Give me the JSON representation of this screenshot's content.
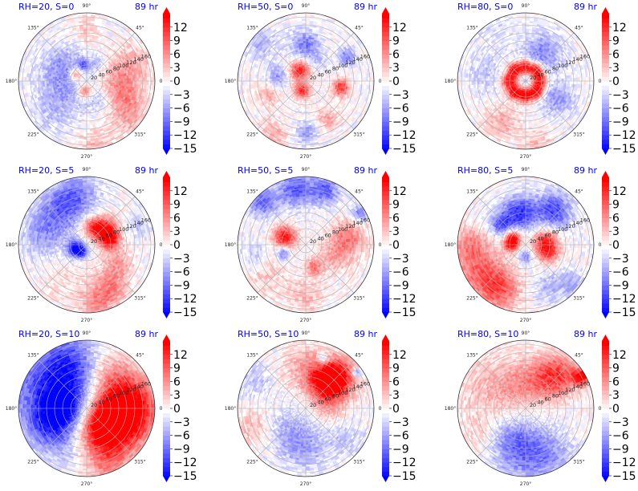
{
  "figure": {
    "rows": 3,
    "cols": 3,
    "time_label": "89 hr",
    "title_color": "#0000ff"
  },
  "chart_data": {
    "type": "heatmap",
    "projection": "polar",
    "title": "",
    "theta_tick_labels": [
      "0°",
      "45°",
      "90°",
      "135°",
      "180°",
      "225°",
      "270°",
      "315°"
    ],
    "r_tick_labels": [
      "20",
      "40",
      "60",
      "80",
      "100",
      "120",
      "140",
      "160"
    ],
    "r_range": [
      0,
      170
    ],
    "colorbar": {
      "cmap": "bwr",
      "range": [
        -15,
        15
      ],
      "extend": "both",
      "ticks": [
        "12",
        "9",
        "6",
        "3",
        "0",
        "−3",
        "−6",
        "−9",
        "−12",
        "−15"
      ],
      "tick_values": [
        12,
        9,
        6,
        3,
        0,
        -3,
        -6,
        -9,
        -12,
        -15
      ]
    },
    "panels": [
      {
        "label": "RH=20, S=0",
        "time": "89 hr",
        "RH": 20,
        "S": 0,
        "pattern": "weak mixed field; blue band to west/northwest, red arcs east and southeast, strong red spot near center-west and south of center",
        "blobs": [
          [
            150,
            70,
            -5,
            40
          ],
          [
            200,
            50,
            -3,
            45
          ],
          [
            340,
            100,
            6,
            30
          ],
          [
            320,
            140,
            5,
            30
          ],
          [
            20,
            120,
            5,
            35
          ],
          [
            150,
            30,
            10,
            12
          ],
          [
            260,
            25,
            10,
            12
          ],
          [
            100,
            40,
            -8,
            10
          ],
          [
            60,
            50,
            -4,
            12
          ],
          [
            220,
            110,
            -3,
            40
          ],
          [
            280,
            160,
            4,
            30
          ],
          [
            90,
            130,
            3,
            25
          ],
          [
            0,
            70,
            3,
            30
          ],
          [
            300,
            60,
            -3,
            20
          ]
        ]
      },
      {
        "label": "RH=50, S=0",
        "time": "89 hr",
        "RH": 50,
        "S": 0,
        "pattern": "strong red spiral near center, blue band surrounding, red patches to east",
        "blobs": [
          [
            120,
            30,
            14,
            18
          ],
          [
            250,
            25,
            13,
            14
          ],
          [
            350,
            90,
            12,
            15
          ],
          [
            90,
            90,
            -8,
            25
          ],
          [
            170,
            70,
            -6,
            20
          ],
          [
            30,
            120,
            -8,
            15
          ],
          [
            270,
            130,
            -6,
            20
          ],
          [
            200,
            100,
            5,
            20
          ],
          [
            300,
            110,
            5,
            20
          ],
          [
            240,
            155,
            4,
            30
          ],
          [
            140,
            150,
            -4,
            30
          ],
          [
            60,
            60,
            -3,
            15
          ]
        ]
      },
      {
        "label": "RH=80, S=0",
        "time": "89 hr",
        "RH": 80,
        "S": 0,
        "pattern": "intense red ring around eye with small blue core, surrounding weak blue band, weak red arc south-west",
        "blobs": [
          [
            0,
            0,
            -6,
            8
          ],
          [
            90,
            35,
            15,
            14
          ],
          [
            0,
            35,
            15,
            14
          ],
          [
            180,
            40,
            15,
            14
          ],
          [
            270,
            35,
            15,
            14
          ],
          [
            45,
            40,
            14,
            12
          ],
          [
            135,
            40,
            14,
            12
          ],
          [
            225,
            40,
            14,
            12
          ],
          [
            315,
            40,
            14,
            12
          ],
          [
            60,
            80,
            -7,
            35
          ],
          [
            330,
            90,
            -6,
            30
          ],
          [
            170,
            100,
            -3,
            35
          ],
          [
            240,
            120,
            5,
            30
          ],
          [
            280,
            160,
            4,
            25
          ],
          [
            120,
            150,
            -2,
            30
          ]
        ]
      },
      {
        "label": "RH=20, S=5",
        "time": "89 hr",
        "RH": 20,
        "S": 5,
        "pattern": "red arc north-east of center spiraling south, strong blue crescent west/south-west of center, blue north-west",
        "blobs": [
          [
            40,
            60,
            13,
            22
          ],
          [
            10,
            60,
            12,
            18
          ],
          [
            70,
            45,
            9,
            18
          ],
          [
            200,
            30,
            -14,
            15
          ],
          [
            230,
            20,
            -10,
            12
          ],
          [
            130,
            110,
            -8,
            40
          ],
          [
            100,
            130,
            -7,
            35
          ],
          [
            170,
            110,
            -5,
            35
          ],
          [
            300,
            120,
            7,
            30
          ],
          [
            280,
            150,
            6,
            30
          ],
          [
            330,
            90,
            5,
            25
          ],
          [
            20,
            140,
            -3,
            20
          ],
          [
            240,
            110,
            2,
            40
          ]
        ]
      },
      {
        "label": "RH=50, S=5",
        "time": "89 hr",
        "RH": 50,
        "S": 5,
        "pattern": "strong red patch west of center, blue band to north, blue streak south-west, red east",
        "blobs": [
          [
            160,
            55,
            14,
            20
          ],
          [
            100,
            140,
            -10,
            30
          ],
          [
            70,
            145,
            -9,
            25
          ],
          [
            135,
            150,
            -9,
            25
          ],
          [
            200,
            60,
            -9,
            12
          ],
          [
            10,
            110,
            7,
            30
          ],
          [
            340,
            80,
            5,
            30
          ],
          [
            290,
            60,
            8,
            15
          ],
          [
            270,
            130,
            4,
            30
          ],
          [
            220,
            120,
            3,
            35
          ],
          [
            190,
            130,
            -3,
            25
          ],
          [
            30,
            155,
            -8,
            15
          ]
        ]
      },
      {
        "label": "RH=80, S=5",
        "time": "89 hr",
        "RH": 80,
        "S": 5,
        "pattern": "red core with blue ring to north/west, strong blue north band, broad red sector south-west",
        "blobs": [
          [
            150,
            35,
            14,
            14
          ],
          [
            180,
            35,
            13,
            12
          ],
          [
            10,
            50,
            11,
            22
          ],
          [
            340,
            60,
            9,
            20
          ],
          [
            100,
            80,
            -12,
            30
          ],
          [
            50,
            110,
            -11,
            30
          ],
          [
            140,
            80,
            -9,
            20
          ],
          [
            270,
            30,
            -8,
            12
          ],
          [
            210,
            130,
            8,
            45
          ],
          [
            240,
            130,
            9,
            35
          ],
          [
            180,
            140,
            6,
            30
          ],
          [
            300,
            120,
            -4,
            30
          ],
          [
            320,
            150,
            -5,
            20
          ]
        ]
      },
      {
        "label": "RH=20, S=10",
        "time": "89 hr",
        "RH": 20,
        "S": 10,
        "pattern": "dipole: strong blue to west/north-west half, strong red to east/south-east half",
        "blobs": [
          [
            150,
            100,
            -10,
            80
          ],
          [
            180,
            60,
            -12,
            40
          ],
          [
            110,
            120,
            -7,
            50
          ],
          [
            210,
            110,
            -6,
            40
          ],
          [
            340,
            90,
            13,
            60
          ],
          [
            10,
            100,
            11,
            50
          ],
          [
            310,
            60,
            12,
            40
          ],
          [
            290,
            140,
            6,
            40
          ],
          [
            60,
            110,
            5,
            40
          ],
          [
            250,
            120,
            -2,
            30
          ]
        ]
      },
      {
        "label": "RH=50, S=10",
        "time": "89 hr",
        "RH": 50,
        "S": 10,
        "pattern": "strong red sector north-east with small blue streaks, weak blue south-west",
        "blobs": [
          [
            45,
            110,
            14,
            35
          ],
          [
            55,
            80,
            10,
            30
          ],
          [
            70,
            130,
            -9,
            10
          ],
          [
            35,
            155,
            -10,
            8
          ],
          [
            90,
            100,
            5,
            40
          ],
          [
            10,
            60,
            5,
            30
          ],
          [
            240,
            70,
            -5,
            40
          ],
          [
            270,
            110,
            -4,
            35
          ],
          [
            150,
            140,
            -3,
            30
          ],
          [
            320,
            120,
            -3,
            35
          ],
          [
            200,
            140,
            4,
            30
          ]
        ]
      },
      {
        "label": "RH=80, S=10",
        "time": "89 hr",
        "RH": 80,
        "S": 10,
        "pattern": "weak red northern half, strong red at north-east edge, weak blue southern sector",
        "blobs": [
          [
            30,
            160,
            14,
            15
          ],
          [
            45,
            120,
            9,
            35
          ],
          [
            60,
            80,
            6,
            40
          ],
          [
            150,
            100,
            4,
            60
          ],
          [
            110,
            60,
            3,
            40
          ],
          [
            270,
            120,
            -6,
            50
          ],
          [
            250,
            80,
            -5,
            40
          ],
          [
            300,
            130,
            -4,
            40
          ],
          [
            210,
            140,
            2,
            30
          ]
        ]
      }
    ]
  }
}
